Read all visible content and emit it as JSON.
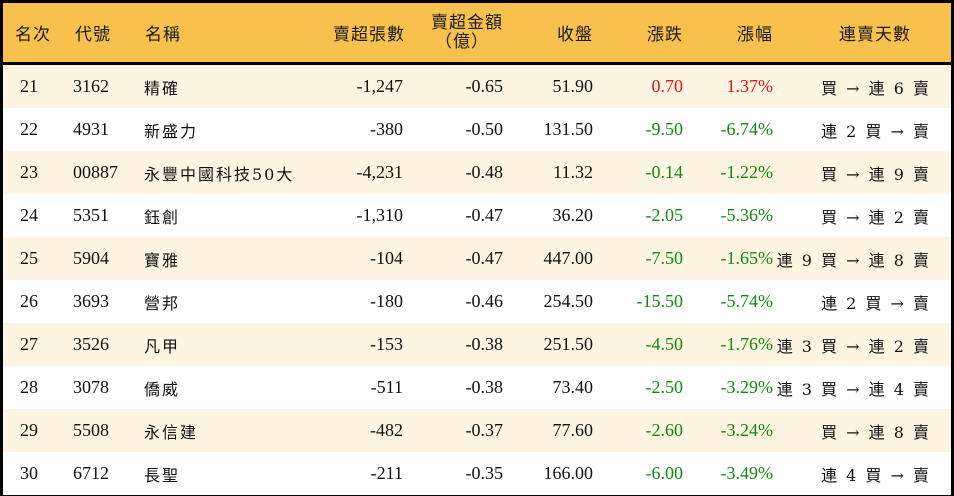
{
  "colors": {
    "header_bg": "#F8C04C",
    "row_odd_bg": "#FDF4E1",
    "row_even_bg": "#FFFFFF",
    "border": "#000000",
    "up": "#E8151B",
    "down": "#118A11"
  },
  "header": {
    "rank": "名次",
    "code": "代號",
    "name": "名稱",
    "net_sell_lots": "賣超張數",
    "net_sell_amount_line1": "賣超金額",
    "net_sell_amount_line2": "（億）",
    "close": "收盤",
    "change": "漲跌",
    "change_pct": "漲幅",
    "streak": "連賣天數"
  },
  "rows": [
    {
      "rank": "21",
      "code": "3162",
      "name": "精確",
      "lots": "-1,247",
      "amount": "-0.65",
      "close": "51.90",
      "change": "0.70",
      "pct": "1.37%",
      "direction": "up",
      "streak": "買 → 連 6 賣"
    },
    {
      "rank": "22",
      "code": "4931",
      "name": "新盛力",
      "lots": "-380",
      "amount": "-0.50",
      "close": "131.50",
      "change": "-9.50",
      "pct": "-6.74%",
      "direction": "down",
      "streak": "連 2 買 → 賣"
    },
    {
      "rank": "23",
      "code": "00887",
      "name": "永豐中國科技50大",
      "lots": "-4,231",
      "amount": "-0.48",
      "close": "11.32",
      "change": "-0.14",
      "pct": "-1.22%",
      "direction": "down",
      "streak": "買 → 連 9 賣"
    },
    {
      "rank": "24",
      "code": "5351",
      "name": "鈺創",
      "lots": "-1,310",
      "amount": "-0.47",
      "close": "36.20",
      "change": "-2.05",
      "pct": "-5.36%",
      "direction": "down",
      "streak": "買 → 連 2 賣"
    },
    {
      "rank": "25",
      "code": "5904",
      "name": "寶雅",
      "lots": "-104",
      "amount": "-0.47",
      "close": "447.00",
      "change": "-7.50",
      "pct": "-1.65%",
      "direction": "down",
      "streak": "連 9 買 → 連 8 賣"
    },
    {
      "rank": "26",
      "code": "3693",
      "name": "營邦",
      "lots": "-180",
      "amount": "-0.46",
      "close": "254.50",
      "change": "-15.50",
      "pct": "-5.74%",
      "direction": "down",
      "streak": "連 2 買 → 賣"
    },
    {
      "rank": "27",
      "code": "3526",
      "name": "凡甲",
      "lots": "-153",
      "amount": "-0.38",
      "close": "251.50",
      "change": "-4.50",
      "pct": "-1.76%",
      "direction": "down",
      "streak": "連 3 買 → 連 2 賣"
    },
    {
      "rank": "28",
      "code": "3078",
      "name": "僑威",
      "lots": "-511",
      "amount": "-0.38",
      "close": "73.40",
      "change": "-2.50",
      "pct": "-3.29%",
      "direction": "down",
      "streak": "連 3 買 → 連 4 賣"
    },
    {
      "rank": "29",
      "code": "5508",
      "name": "永信建",
      "lots": "-482",
      "amount": "-0.37",
      "close": "77.60",
      "change": "-2.60",
      "pct": "-3.24%",
      "direction": "down",
      "streak": "買 → 連 8 賣"
    },
    {
      "rank": "30",
      "code": "6712",
      "name": "長聖",
      "lots": "-211",
      "amount": "-0.35",
      "close": "166.00",
      "change": "-6.00",
      "pct": "-3.49%",
      "direction": "down",
      "streak": "連 4 買 → 賣"
    }
  ]
}
